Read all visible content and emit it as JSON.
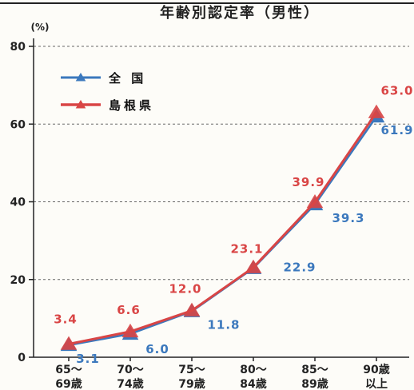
{
  "chart_data": {
    "type": "line",
    "title": "年齢別認定率（男性）",
    "ylabel": "(%)",
    "xlabel": "",
    "ylim": [
      0,
      80
    ],
    "yticks": [
      0,
      20,
      40,
      60,
      80
    ],
    "grid": true,
    "legend_position": "top-left",
    "categories": [
      [
        "65〜",
        "69歳"
      ],
      [
        "70〜",
        "74歳"
      ],
      [
        "75〜",
        "79歳"
      ],
      [
        "80〜",
        "84歳"
      ],
      [
        "85〜",
        "89歳"
      ],
      [
        "90歳",
        "以上"
      ]
    ],
    "series": [
      {
        "name": "全 国",
        "color": "#3b78bd",
        "values": [
          3.1,
          6.0,
          11.8,
          22.9,
          39.3,
          61.9
        ],
        "labels": [
          "3.1",
          "6.0",
          "11.8",
          "22.9",
          "39.3",
          "61.9"
        ]
      },
      {
        "name": "島根県",
        "color": "#d94545",
        "values": [
          3.4,
          6.6,
          12.0,
          23.1,
          39.9,
          63.0
        ],
        "labels": [
          "3.4",
          "6.6",
          "12.0",
          "23.1",
          "39.9",
          "63.0"
        ]
      }
    ]
  }
}
